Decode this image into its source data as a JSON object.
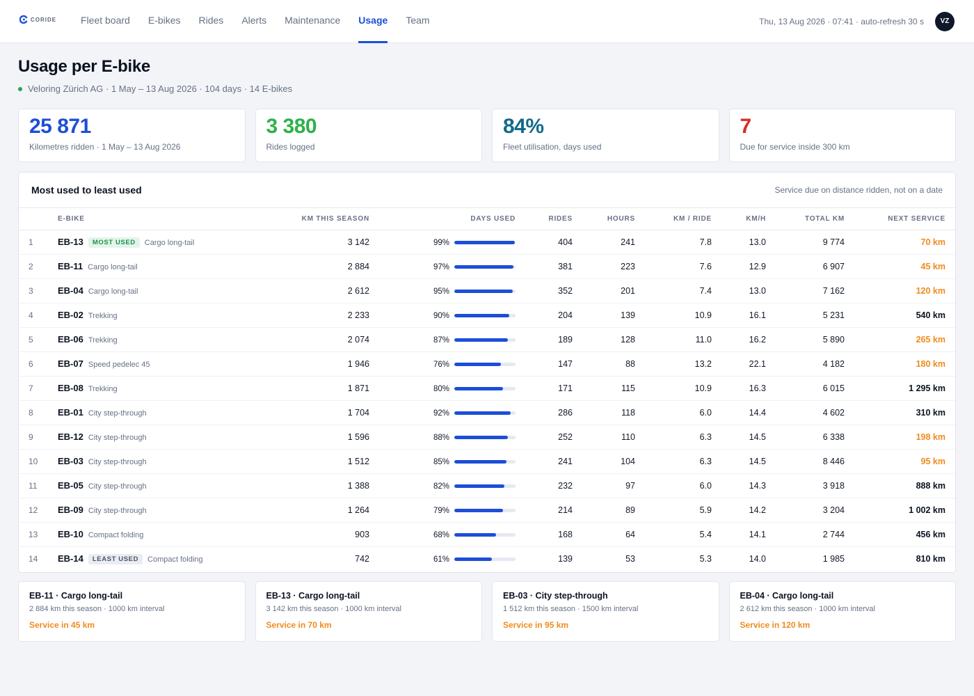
{
  "brand": {
    "logo_text": "CORIDE",
    "accent": "#1d4ed8"
  },
  "nav": [
    {
      "label": "Fleet board",
      "active": false
    },
    {
      "label": "E-bikes",
      "active": false
    },
    {
      "label": "Rides",
      "active": false
    },
    {
      "label": "Alerts",
      "active": false
    },
    {
      "label": "Maintenance",
      "active": false
    },
    {
      "label": "Usage",
      "active": true
    },
    {
      "label": "Team",
      "active": false
    }
  ],
  "header": {
    "refresh_text": "Thu, 13 Aug 2026 · 07:41 · auto-refresh 30 s",
    "avatar_initials": "VZ"
  },
  "page": {
    "title": "Usage per E-bike",
    "subtitle": "Veloring Zürich AG · 1 May – 13 Aug 2026 · 104 days · 14 E-bikes"
  },
  "kpis": [
    {
      "value": "25 871",
      "label": "Kilometres ridden · 1 May – 13 Aug 2026",
      "color": "#1d4ed8"
    },
    {
      "value": "3 380",
      "label": "Rides logged",
      "color": "#2db14a"
    },
    {
      "value": "84%",
      "label": "Fleet utilisation, days used",
      "color": "#136a8a"
    },
    {
      "value": "7",
      "label": "Due for service inside 300 km",
      "color": "#d92d20"
    }
  ],
  "table": {
    "title": "Most used to least used",
    "note": "Service due on distance ridden, not on a date",
    "columns": [
      "",
      "E-bike",
      "KM this season",
      "Days used",
      "Rides",
      "Hours",
      "KM / ride",
      "KM/H",
      "Total km",
      "Next service"
    ],
    "rows": [
      {
        "rank": "1",
        "id": "EB-13",
        "badge": "MOST USED",
        "type": "Cargo long-tail",
        "km": "3 142",
        "days": "99%",
        "days_frac": 0.99,
        "rides": "404",
        "hours": "241",
        "kmr": "7.8",
        "kmh": "13.0",
        "total": "9 774",
        "next": "70 km",
        "soon": true
      },
      {
        "rank": "2",
        "id": "EB-11",
        "badge": "",
        "type": "Cargo long-tail",
        "km": "2 884",
        "days": "97%",
        "days_frac": 0.97,
        "rides": "381",
        "hours": "223",
        "kmr": "7.6",
        "kmh": "12.9",
        "total": "6 907",
        "next": "45 km",
        "soon": true
      },
      {
        "rank": "3",
        "id": "EB-04",
        "badge": "",
        "type": "Cargo long-tail",
        "km": "2 612",
        "days": "95%",
        "days_frac": 0.95,
        "rides": "352",
        "hours": "201",
        "kmr": "7.4",
        "kmh": "13.0",
        "total": "7 162",
        "next": "120 km",
        "soon": true
      },
      {
        "rank": "4",
        "id": "EB-02",
        "badge": "",
        "type": "Trekking",
        "km": "2 233",
        "days": "90%",
        "days_frac": 0.9,
        "rides": "204",
        "hours": "139",
        "kmr": "10.9",
        "kmh": "16.1",
        "total": "5 231",
        "next": "540 km",
        "soon": false
      },
      {
        "rank": "5",
        "id": "EB-06",
        "badge": "",
        "type": "Trekking",
        "km": "2 074",
        "days": "87%",
        "days_frac": 0.87,
        "rides": "189",
        "hours": "128",
        "kmr": "11.0",
        "kmh": "16.2",
        "total": "5 890",
        "next": "265 km",
        "soon": true
      },
      {
        "rank": "6",
        "id": "EB-07",
        "badge": "",
        "type": "Speed pedelec 45",
        "km": "1 946",
        "days": "76%",
        "days_frac": 0.76,
        "rides": "147",
        "hours": "88",
        "kmr": "13.2",
        "kmh": "22.1",
        "total": "4 182",
        "next": "180 km",
        "soon": true
      },
      {
        "rank": "7",
        "id": "EB-08",
        "badge": "",
        "type": "Trekking",
        "km": "1 871",
        "days": "80%",
        "days_frac": 0.8,
        "rides": "171",
        "hours": "115",
        "kmr": "10.9",
        "kmh": "16.3",
        "total": "6 015",
        "next": "1 295 km",
        "soon": false
      },
      {
        "rank": "8",
        "id": "EB-01",
        "badge": "",
        "type": "City step-through",
        "km": "1 704",
        "days": "92%",
        "days_frac": 0.92,
        "rides": "286",
        "hours": "118",
        "kmr": "6.0",
        "kmh": "14.4",
        "total": "4 602",
        "next": "310 km",
        "soon": false
      },
      {
        "rank": "9",
        "id": "EB-12",
        "badge": "",
        "type": "City step-through",
        "km": "1 596",
        "days": "88%",
        "days_frac": 0.88,
        "rides": "252",
        "hours": "110",
        "kmr": "6.3",
        "kmh": "14.5",
        "total": "6 338",
        "next": "198 km",
        "soon": true
      },
      {
        "rank": "10",
        "id": "EB-03",
        "badge": "",
        "type": "City step-through",
        "km": "1 512",
        "days": "85%",
        "days_frac": 0.85,
        "rides": "241",
        "hours": "104",
        "kmr": "6.3",
        "kmh": "14.5",
        "total": "8 446",
        "next": "95 km",
        "soon": true
      },
      {
        "rank": "11",
        "id": "EB-05",
        "badge": "",
        "type": "City step-through",
        "km": "1 388",
        "days": "82%",
        "days_frac": 0.82,
        "rides": "232",
        "hours": "97",
        "kmr": "6.0",
        "kmh": "14.3",
        "total": "3 918",
        "next": "888 km",
        "soon": false
      },
      {
        "rank": "12",
        "id": "EB-09",
        "badge": "",
        "type": "City step-through",
        "km": "1 264",
        "days": "79%",
        "days_frac": 0.79,
        "rides": "214",
        "hours": "89",
        "kmr": "5.9",
        "kmh": "14.2",
        "total": "3 204",
        "next": "1 002 km",
        "soon": false
      },
      {
        "rank": "13",
        "id": "EB-10",
        "badge": "",
        "type": "Compact folding",
        "km": "903",
        "days": "68%",
        "days_frac": 0.68,
        "rides": "168",
        "hours": "64",
        "kmr": "5.4",
        "kmh": "14.1",
        "total": "2 744",
        "next": "456 km",
        "soon": false
      },
      {
        "rank": "14",
        "id": "EB-14",
        "badge": "LEAST USED",
        "type": "Compact folding",
        "km": "742",
        "days": "61%",
        "days_frac": 0.61,
        "rides": "139",
        "hours": "53",
        "kmr": "5.3",
        "kmh": "14.0",
        "total": "1 985",
        "next": "810 km",
        "soon": false
      }
    ]
  },
  "service_cards": [
    {
      "title": "EB-11 · Cargo long-tail",
      "sub": "2 884 km this season · 1000 km interval",
      "due": "Service in 45 km"
    },
    {
      "title": "EB-13 · Cargo long-tail",
      "sub": "3 142 km this season · 1000 km interval",
      "due": "Service in 70 km"
    },
    {
      "title": "EB-03 · City step-through",
      "sub": "1 512 km this season · 1500 km interval",
      "due": "Service in 95 km"
    },
    {
      "title": "EB-04 · Cargo long-tail",
      "sub": "2 612 km this season · 1000 km interval",
      "due": "Service in 120 km"
    }
  ]
}
